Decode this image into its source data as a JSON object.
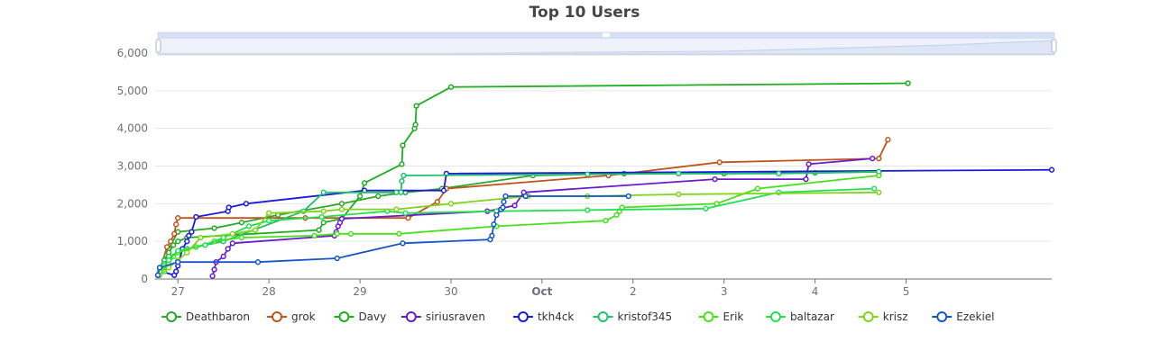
{
  "chart_data": {
    "type": "line",
    "title": "Top 10 Users",
    "xlabel": "",
    "ylabel": "",
    "x_ticks": [
      "27",
      "28",
      "29",
      "30",
      "Oct",
      "2",
      "3",
      "4",
      "5"
    ],
    "x_range_days": [
      26.75,
      36.6
    ],
    "ylim": [
      0,
      6000
    ],
    "y_ticks": [
      "0",
      "1,000",
      "2,000",
      "3,000",
      "4,000",
      "5,000",
      "6,000"
    ],
    "y_tick_values": [
      0,
      1000,
      2000,
      3000,
      4000,
      5000,
      6000
    ],
    "grid": true,
    "legend_position": "bottom",
    "data_zoom_slider": true,
    "series": [
      {
        "name": "Deathbaron",
        "color": "#2aa82a",
        "x": [
          26.78,
          26.85,
          26.9,
          27.0,
          27.4,
          27.7,
          28.1,
          28.8,
          29.2,
          29.5,
          29.9,
          30.9,
          31.9,
          33.0,
          34.0,
          34.7
        ],
        "y": [
          100,
          400,
          800,
          1250,
          1350,
          1500,
          1700,
          2000,
          2200,
          2300,
          2400,
          2750,
          2800,
          2800,
          2820,
          2850
        ]
      },
      {
        "name": "grok",
        "color": "#c0541a",
        "x": [
          26.8,
          26.88,
          26.92,
          26.96,
          26.98,
          27.0,
          28.4,
          29.53,
          29.85,
          29.95,
          31.73,
          32.95,
          34.7,
          34.8
        ],
        "y": [
          200,
          850,
          1000,
          1200,
          1450,
          1620,
          1620,
          1620,
          2050,
          2400,
          2750,
          3100,
          3200,
          3700
        ]
      },
      {
        "name": "Davy",
        "color": "#1fae1f",
        "x": [
          26.8,
          26.85,
          26.9,
          26.95,
          27.0,
          27.1,
          28.55,
          28.6,
          28.8,
          29.0,
          29.05,
          29.46,
          29.47,
          29.6,
          29.61,
          29.62,
          30.0,
          35.02
        ],
        "y": [
          300,
          500,
          700,
          900,
          1000,
          1100,
          1300,
          1500,
          1600,
          2200,
          2550,
          3050,
          3550,
          4000,
          4100,
          4600,
          5100,
          5200
        ]
      },
      {
        "name": "siriusraven",
        "color": "#6a1bcc",
        "x": [
          27.38,
          27.4,
          27.42,
          27.5,
          27.55,
          27.6,
          28.72,
          28.74,
          28.76,
          28.78,
          28.8,
          30.4,
          30.7,
          30.8,
          32.9,
          33.9,
          33.93,
          34.63
        ],
        "y": [
          80,
          250,
          450,
          600,
          800,
          950,
          1150,
          1250,
          1400,
          1500,
          1600,
          1800,
          1950,
          2300,
          2650,
          2650,
          3050,
          3200
        ]
      },
      {
        "name": "tkh4ck",
        "color": "#1a1adb",
        "x": [
          26.78,
          26.82,
          26.96,
          26.98,
          27.0,
          27.05,
          27.1,
          27.12,
          27.15,
          27.2,
          27.55,
          27.56,
          27.75,
          29.05,
          29.92,
          29.95,
          36.6
        ],
        "y": [
          100,
          200,
          100,
          200,
          350,
          800,
          1000,
          1150,
          1250,
          1650,
          1800,
          1900,
          2000,
          2350,
          2350,
          2800,
          2900
        ]
      },
      {
        "name": "kristof345",
        "color": "#1fc16b",
        "x": [
          26.8,
          26.85,
          26.9,
          27.1,
          27.5,
          28.38,
          28.6,
          29.4,
          29.45,
          29.46,
          29.48,
          31.5,
          32.5,
          33.6,
          34.7
        ],
        "y": [
          200,
          400,
          600,
          800,
          1000,
          1800,
          2300,
          2300,
          2300,
          2600,
          2750,
          2780,
          2800,
          2800,
          2850
        ]
      },
      {
        "name": "Erik",
        "color": "#45e21a",
        "x": [
          26.8,
          26.85,
          26.9,
          26.95,
          27.0,
          27.2,
          27.4,
          27.7,
          28.5,
          28.75,
          28.9,
          29.43,
          30.5,
          31.7,
          31.82,
          31.85,
          31.88,
          32.92,
          33.37,
          34.7
        ],
        "y": [
          100,
          200,
          400,
          600,
          700,
          850,
          1000,
          1100,
          1150,
          1200,
          1200,
          1200,
          1400,
          1550,
          1700,
          1800,
          1900,
          2000,
          2400,
          2750
        ]
      },
      {
        "name": "baltazar",
        "color": "#22e04f",
        "x": [
          26.8,
          26.85,
          26.9,
          27.0,
          27.3,
          27.5,
          27.78,
          28.0,
          28.58,
          29.3,
          29.5,
          30.5,
          31.5,
          32.8,
          33.6,
          34.65
        ],
        "y": [
          200,
          350,
          500,
          750,
          900,
          1100,
          1400,
          1550,
          1650,
          1800,
          1750,
          1800,
          1830,
          1870,
          2300,
          2400
        ]
      },
      {
        "name": "krisz",
        "color": "#7ed51b",
        "x": [
          26.8,
          26.9,
          27.0,
          27.1,
          27.25,
          27.6,
          27.85,
          28.0,
          28.6,
          28.8,
          29.4,
          30.0,
          30.85,
          31.5,
          32.5,
          34.7
        ],
        "y": [
          100,
          300,
          500,
          700,
          1100,
          1200,
          1300,
          1750,
          1800,
          1850,
          1850,
          2000,
          2200,
          2200,
          2250,
          2300
        ]
      },
      {
        "name": "Ezekiel",
        "color": "#1555c8",
        "x": [
          26.78,
          26.8,
          27.0,
          27.88,
          28.75,
          29.47,
          30.43,
          30.45,
          30.47,
          30.5,
          30.55,
          30.57,
          30.58,
          30.6,
          30.82,
          31.95
        ],
        "y": [
          100,
          300,
          450,
          450,
          550,
          950,
          1050,
          1150,
          1450,
          1700,
          1850,
          1900,
          2050,
          2200,
          2200,
          2200
        ]
      }
    ]
  }
}
